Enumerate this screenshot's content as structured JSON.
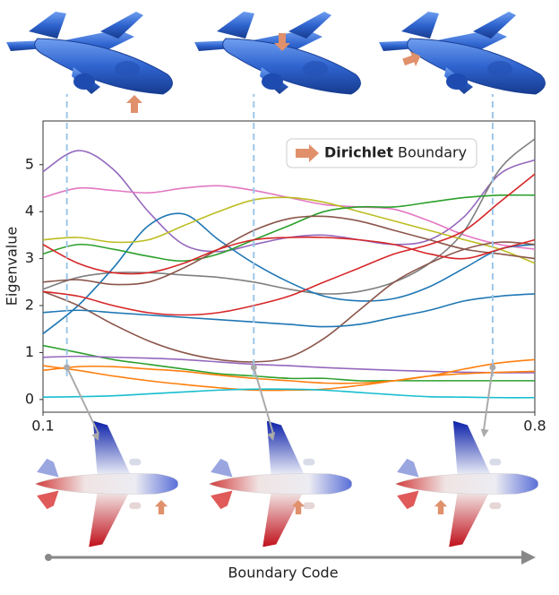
{
  "chart_data": {
    "type": "line",
    "y_label": "Eigenvalue",
    "x_label": "Boundary Code",
    "legend_label_bold": "Dirichlet",
    "legend_label": "Boundary",
    "xlim": [
      0.1,
      0.8
    ],
    "xticks": [
      0.1,
      0.8
    ],
    "ylim": [
      -0.27,
      5.93
    ],
    "yticks": [
      0,
      1,
      2,
      3,
      4,
      5
    ],
    "highlight_x": [
      0.134,
      0.4,
      0.74
    ],
    "x": [
      0.1,
      0.15,
      0.2,
      0.25,
      0.3,
      0.35,
      0.4,
      0.45,
      0.5,
      0.55,
      0.6,
      0.65,
      0.7,
      0.75,
      0.8
    ],
    "series": [
      {
        "color": "#9467bd",
        "values": [
          4.85,
          5.3,
          4.9,
          4.0,
          3.3,
          3.15,
          3.3,
          3.45,
          3.5,
          3.4,
          3.3,
          3.4,
          3.9,
          4.8,
          5.1
        ]
      },
      {
        "color": "#e377c2",
        "values": [
          4.3,
          4.5,
          4.45,
          4.4,
          4.5,
          4.55,
          4.45,
          4.3,
          4.15,
          4.1,
          4.05,
          3.8,
          3.5,
          3.3,
          3.2
        ]
      },
      {
        "color": "#7f7f7f",
        "values": [
          2.35,
          2.6,
          2.7,
          2.7,
          2.65,
          2.6,
          2.5,
          2.35,
          2.25,
          2.3,
          2.5,
          2.9,
          3.6,
          4.9,
          5.55
        ]
      },
      {
        "color": "#1f77b4",
        "values": [
          1.4,
          2.0,
          2.8,
          3.7,
          3.95,
          3.4,
          2.9,
          2.5,
          2.2,
          2.1,
          2.15,
          2.4,
          2.8,
          3.2,
          3.3
        ]
      },
      {
        "color": "#bcbd22",
        "values": [
          3.4,
          3.45,
          3.35,
          3.4,
          3.7,
          4.0,
          4.25,
          4.3,
          4.2,
          4.0,
          3.8,
          3.6,
          3.4,
          3.2,
          2.9
        ]
      },
      {
        "color": "#2ca02c",
        "values": [
          3.1,
          3.3,
          3.2,
          3.05,
          2.95,
          3.1,
          3.4,
          3.7,
          4.0,
          4.1,
          4.1,
          4.2,
          4.3,
          4.35,
          4.35
        ]
      },
      {
        "color": "#8c564b",
        "values": [
          2.3,
          2.0,
          1.6,
          1.25,
          1.0,
          0.85,
          0.8,
          0.9,
          1.3,
          1.9,
          2.5,
          2.9,
          3.2,
          3.35,
          3.3
        ]
      },
      {
        "color": "#8c564b",
        "values": [
          2.5,
          2.55,
          2.45,
          2.5,
          2.8,
          3.2,
          3.6,
          3.85,
          3.9,
          3.8,
          3.6,
          3.4,
          3.2,
          3.1,
          3.0
        ]
      },
      {
        "color": "#d62728",
        "values": [
          2.3,
          2.2,
          2.0,
          1.85,
          1.8,
          1.85,
          2.0,
          2.2,
          2.5,
          2.8,
          3.1,
          3.3,
          3.6,
          4.2,
          4.8
        ]
      },
      {
        "color": "#d62728",
        "values": [
          3.3,
          2.9,
          2.7,
          2.7,
          2.9,
          3.2,
          3.4,
          3.45,
          3.45,
          3.4,
          3.3,
          3.1,
          3.0,
          3.2,
          3.4
        ]
      },
      {
        "color": "#1f77b4",
        "values": [
          1.85,
          1.9,
          1.85,
          1.8,
          1.75,
          1.7,
          1.65,
          1.6,
          1.55,
          1.6,
          1.75,
          1.9,
          2.1,
          2.2,
          2.25
        ]
      },
      {
        "color": "#2ca02c",
        "values": [
          1.15,
          1.0,
          0.85,
          0.75,
          0.65,
          0.55,
          0.5,
          0.45,
          0.45,
          0.4,
          0.4,
          0.4,
          0.4,
          0.4,
          0.4
        ]
      },
      {
        "color": "#9467bd",
        "values": [
          0.9,
          0.92,
          0.9,
          0.88,
          0.85,
          0.8,
          0.75,
          0.72,
          0.68,
          0.65,
          0.62,
          0.6,
          0.58,
          0.57,
          0.57
        ]
      },
      {
        "color": "#ff7f0e",
        "values": [
          0.62,
          0.7,
          0.7,
          0.65,
          0.6,
          0.52,
          0.45,
          0.4,
          0.35,
          0.35,
          0.4,
          0.5,
          0.65,
          0.78,
          0.85
        ]
      },
      {
        "color": "#ff7f0e",
        "values": [
          0.72,
          0.62,
          0.5,
          0.4,
          0.32,
          0.25,
          0.2,
          0.2,
          0.22,
          0.3,
          0.4,
          0.5,
          0.55,
          0.58,
          0.6
        ]
      },
      {
        "color": "#17becf",
        "values": [
          0.05,
          0.06,
          0.08,
          0.12,
          0.16,
          0.2,
          0.22,
          0.22,
          0.2,
          0.15,
          0.1,
          0.06,
          0.05,
          0.04,
          0.04
        ]
      }
    ]
  }
}
